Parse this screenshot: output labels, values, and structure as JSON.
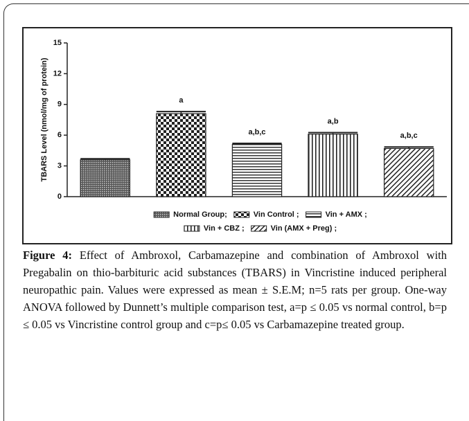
{
  "chart_data": {
    "type": "bar",
    "ylabel": "TBARS Level (nmol/mg of protein)",
    "ylim": [
      0,
      15
    ],
    "yticks": [
      0,
      3,
      6,
      9,
      12,
      15
    ],
    "series": [
      {
        "name": "Normal Group;",
        "values": [
          3.6
        ],
        "errors": [
          0.1
        ],
        "pattern": "dense"
      },
      {
        "name": "Vin Control ;",
        "values": [
          8.1
        ],
        "errors": [
          0.2
        ],
        "pattern": "checker",
        "annotation": "a"
      },
      {
        "name": "Vin + AMX ;",
        "values": [
          5.1
        ],
        "errors": [
          0.1
        ],
        "pattern": "horizontal",
        "annotation": "a,b,c"
      },
      {
        "name": "Vin + CBZ ;",
        "values": [
          6.1
        ],
        "errors": [
          0.15
        ],
        "pattern": "vertical",
        "annotation": "a,b"
      },
      {
        "name": "Vin (AMX + Preg) ;",
        "values": [
          4.7
        ],
        "errors": [
          0.15
        ],
        "pattern": "diagonal",
        "annotation": "a,b,c"
      }
    ],
    "legend_rows": [
      3,
      2
    ]
  },
  "caption": {
    "label": "Figure 4:",
    "text": "Effect of Ambroxol, Carbamazepine and combination of Ambroxol with Pregabalin on thio-barbituric acid substances (TBARS) in Vincristine induced peripheral neuropathic pain. Values were expressed as mean ± S.E.M; n=5 rats per group. One-way ANOVA followed by Dunnett’s multiple comparison test, a=p ≤ 0.05 vs normal control, b=p ≤ 0.05 vs Vincristine control group and c=p≤ 0.05 vs Carbamazepine treated group."
  }
}
